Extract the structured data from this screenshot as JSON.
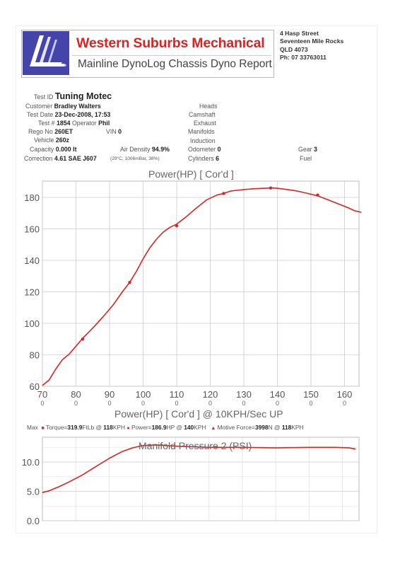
{
  "header": {
    "business_name": "Western Suburbs Mechanical",
    "report_title": "Mainline DynoLog Chassis Dyno Report",
    "address": [
      "4 Hasp Street",
      "Seventeen Mile Rocks",
      "QLD 4073",
      "Ph: 07 33763011"
    ],
    "logo_icon": "mainline-logo-icon",
    "brand_color": "#dd2222",
    "logo_color": "#4444aa"
  },
  "test_info": {
    "test_id_label": "Test ID",
    "test_id": "Tuning Motec",
    "customer_label": "Customer",
    "customer": "Bradley Walters",
    "test_date_label": "Test Date",
    "test_date": "23-Dec-2008, 17:53",
    "test_no_label": "Test #",
    "test_no": "1854",
    "operator_label": "Operator",
    "operator": "Phil",
    "rego_label": "Rego No",
    "rego": "260ET",
    "vin_label": "VIN",
    "vin": "0",
    "vehicle_label": "Vehicle",
    "vehicle": "260z",
    "capacity_label": "Capacity",
    "capacity": "0.000 lt",
    "air_density_label": "Air Density",
    "air_density": "94.9%",
    "air_conditions": "(29°C, 1006mBar, 38%)",
    "correction_label": "Correction",
    "correction": "4.61 SAE J607",
    "heads_label": "Heads",
    "camshaft_label": "Camshaft",
    "exhaust_label": "Exhaust",
    "manifolds_label": "Manifolds",
    "induction_label": "Induction",
    "odometer_label": "Odometer",
    "odometer": "0",
    "cylinders_label": "Cylinders",
    "cylinders": "6",
    "gear_label": "Gear",
    "gear": "3",
    "fuel_label": "Fuel"
  },
  "chart_data": [
    {
      "type": "line",
      "title": "Power(HP)     [ Cor'd ]",
      "xlabel": "Power(HP)     [ Cor'd ] @ 10KPH/Sec UP",
      "ylabel": "",
      "xlim": [
        70,
        165
      ],
      "ylim": [
        60,
        190
      ],
      "x_ticks": [
        70,
        80,
        90,
        100,
        110,
        120,
        130,
        140,
        150,
        160
      ],
      "x_tick_labels": [
        "70",
        "80",
        "90",
        "100",
        "110",
        "120",
        "130",
        "140",
        "150",
        "160"
      ],
      "x_sub_labels": [
        "0",
        "0",
        "0",
        "0",
        "0",
        "0",
        "0",
        "0",
        "0",
        "0"
      ],
      "y_ticks": [
        60,
        80,
        100,
        120,
        140,
        160,
        180
      ],
      "y_tick_labels": [
        "60",
        "80",
        "100",
        "120",
        "140",
        "160",
        "180"
      ],
      "grid": true,
      "line_color": "#dd2222",
      "series": [
        {
          "x": [
            70,
            72,
            74,
            76,
            78,
            80,
            82,
            85,
            88,
            91,
            94,
            96,
            98,
            100,
            102,
            104,
            106,
            108,
            110,
            113,
            116,
            119,
            122,
            124,
            126,
            128,
            130,
            133,
            136,
            138,
            140,
            143,
            146,
            149,
            152,
            155,
            158,
            161,
            163,
            165
          ],
          "values": [
            60.5,
            64,
            71,
            77,
            80.5,
            85.5,
            90.5,
            97,
            104,
            111.5,
            120.5,
            126,
            133,
            141,
            148,
            153.5,
            158,
            161,
            163,
            168,
            173.5,
            178.5,
            181.5,
            182.5,
            184,
            184.5,
            185,
            185.5,
            185.8,
            186,
            185.8,
            185,
            184,
            182.5,
            181,
            178.5,
            176,
            173.5,
            171.5,
            170.5
          ]
        }
      ],
      "markers": [
        {
          "x": 82,
          "y": 90
        },
        {
          "x": 96,
          "y": 126
        },
        {
          "x": 110,
          "y": 162
        },
        {
          "x": 124,
          "y": 182.5
        },
        {
          "x": 138,
          "y": 186
        },
        {
          "x": 152,
          "y": 181.5
        }
      ]
    },
    {
      "type": "line",
      "title": "Manifold Pressure 2 (PSI)",
      "xlabel": "",
      "ylabel": "",
      "xlim": [
        70,
        165
      ],
      "ylim": [
        0,
        13
      ],
      "y_ticks": [
        0,
        5,
        10
      ],
      "y_tick_labels": [
        "0.0",
        "5.0",
        "10.0"
      ],
      "grid": true,
      "line_color": "#dd2222",
      "series": [
        {
          "x": [
            70,
            72,
            75,
            78,
            82,
            86,
            90,
            94,
            97,
            100,
            104,
            110,
            120,
            130,
            140,
            150,
            158,
            162,
            164
          ],
          "values": [
            4.8,
            5.1,
            5.8,
            6.6,
            7.8,
            9.2,
            10.6,
            11.8,
            12.4,
            12.8,
            12.9,
            12.7,
            12.5,
            12.5,
            12.4,
            12.5,
            12.5,
            12.4,
            12.2
          ]
        }
      ]
    }
  ],
  "max_summary": {
    "label": "Max",
    "torque_label": "Torque=",
    "torque_value": "319.9",
    "torque_unit": "FtLb @",
    "torque_speed": "118",
    "torque_speed_unit": "KPH",
    "power_label": "Power=",
    "power_value": "186.9",
    "power_unit": "HP @",
    "power_speed": "140",
    "power_speed_unit": "KPH",
    "force_label": "Motive Force=",
    "force_value": "3998",
    "force_unit": "N @",
    "force_speed": "118",
    "force_speed_unit": "KPH"
  }
}
